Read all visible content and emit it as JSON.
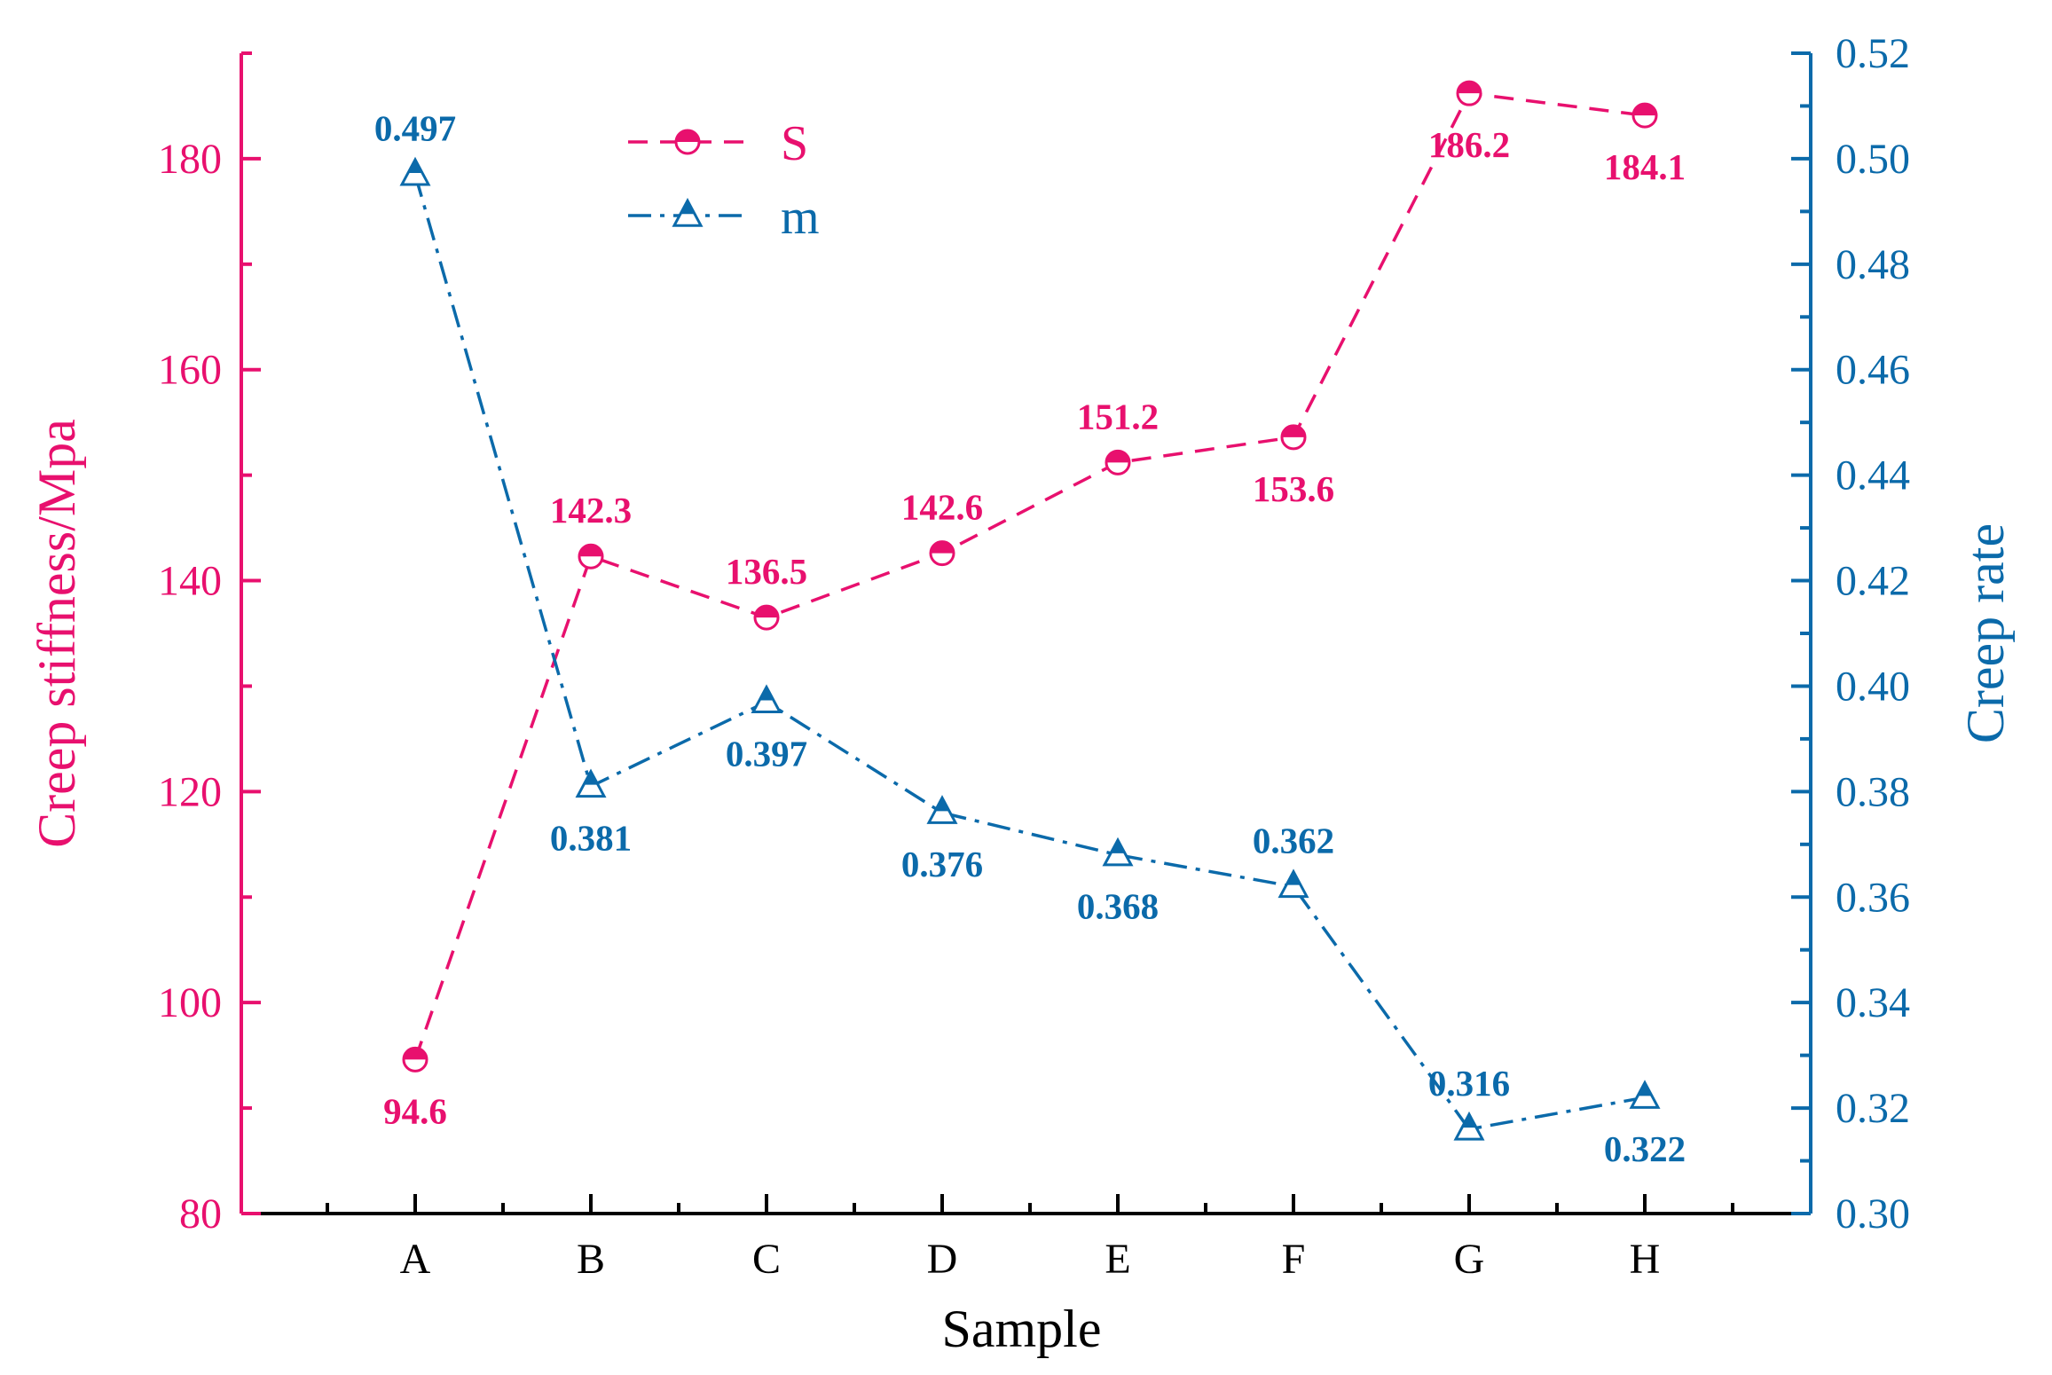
{
  "chart_data": {
    "type": "line",
    "categories": [
      "A",
      "B",
      "C",
      "D",
      "E",
      "F",
      "G",
      "H"
    ],
    "xlabel": "Sample",
    "y_left": {
      "label": "Creep stiffness/Mpa",
      "range": [
        80,
        190
      ],
      "ticks": [
        80,
        100,
        120,
        140,
        160,
        180
      ],
      "tick_labels": [
        "80",
        "100",
        "120",
        "140",
        "160",
        "180"
      ]
    },
    "y_right": {
      "label": "Creep rate",
      "range": [
        0.3,
        0.52
      ],
      "ticks": [
        0.3,
        0.32,
        0.34,
        0.36,
        0.38,
        0.4,
        0.42,
        0.44,
        0.46,
        0.48,
        0.5,
        0.52
      ],
      "tick_labels": [
        "0.30",
        "0.32",
        "0.34",
        "0.36",
        "0.38",
        "0.40",
        "0.42",
        "0.44",
        "0.46",
        "0.48",
        "0.50",
        "0.52"
      ]
    },
    "series": [
      {
        "name": "S",
        "axis": "left",
        "color": "#E8106E",
        "line_style": "dashed",
        "marker": "half-filled-circle",
        "values": [
          94.6,
          142.3,
          136.5,
          142.6,
          151.2,
          153.6,
          186.2,
          184.1
        ],
        "data_labels": [
          "94.6",
          "142.3",
          "136.5",
          "142.6",
          "151.2",
          "153.6",
          "186.2",
          "184.1"
        ],
        "label_positions": [
          "below",
          "above",
          "above",
          "above",
          "above",
          "below",
          "below",
          "below"
        ]
      },
      {
        "name": "m",
        "axis": "right",
        "color": "#0B6AAA",
        "line_style": "dash-dot",
        "marker": "half-filled-triangle",
        "values": [
          0.497,
          0.381,
          0.397,
          0.376,
          0.368,
          0.362,
          0.316,
          0.322
        ],
        "data_labels": [
          "0.497",
          "0.381",
          "0.397",
          "0.376",
          "0.368",
          "0.362",
          "0.316",
          "0.322"
        ],
        "label_positions": [
          "above",
          "below",
          "below",
          "below",
          "below",
          "above",
          "above",
          "below"
        ]
      }
    ],
    "legend": {
      "position": "top-left",
      "entries": [
        "S",
        "m"
      ]
    },
    "grid": false
  }
}
